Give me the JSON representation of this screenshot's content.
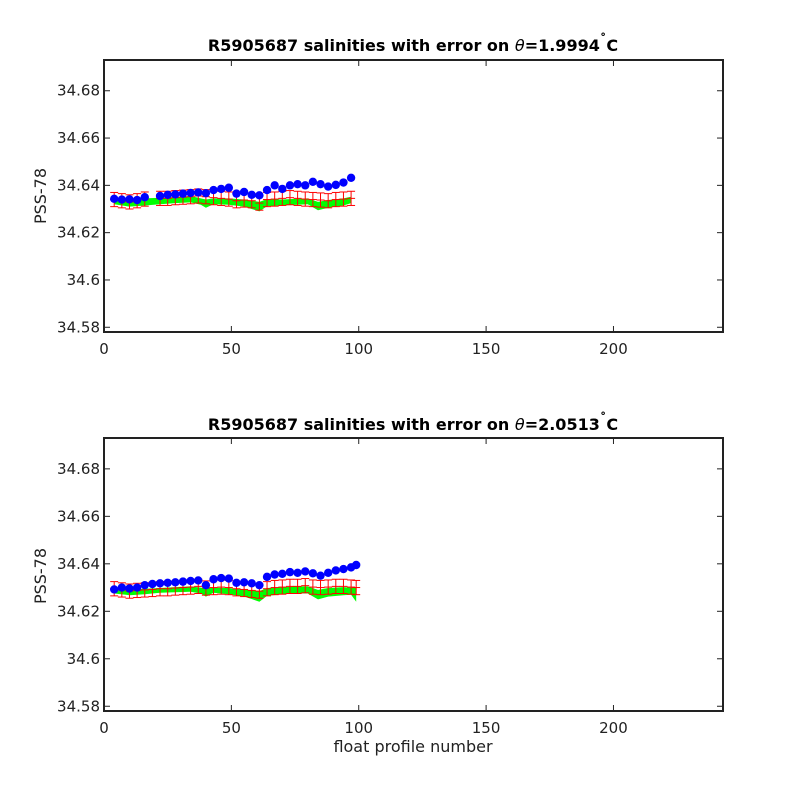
{
  "chart_data": [
    {
      "type": "scatter",
      "title": "R5905687 salinities with error on θ=1.9994˚C",
      "title_parts": {
        "prefix": "R5905687 salinities with error on ",
        "theta": "θ",
        "value": "=1.9994",
        "degree": "˚",
        "unit": "C"
      },
      "xlabel": "",
      "ylabel": "PSS-78",
      "xlim": [
        0,
        243
      ],
      "ylim": [
        34.578,
        34.693
      ],
      "xticks": [
        "0",
        "50",
        "100",
        "150",
        "200"
      ],
      "yticks": [
        "34.58",
        "34.6",
        "34.62",
        "34.64",
        "34.66",
        "34.68"
      ],
      "colors": {
        "float": "#0000ff",
        "mapped": "#ff0000",
        "band": "#00ff00"
      },
      "x_range": [
        4,
        97
      ],
      "float_x": [
        4,
        7,
        10,
        13,
        16,
        22,
        25,
        28,
        31,
        34,
        37,
        40,
        43,
        46,
        49,
        52,
        55,
        58,
        61,
        64,
        67,
        70,
        73,
        76,
        79,
        82,
        85,
        88,
        91,
        94,
        97
      ],
      "float_sal": [
        34.6343,
        34.634,
        34.6341,
        34.6338,
        34.635,
        34.6355,
        34.636,
        34.6362,
        34.6365,
        34.6368,
        34.637,
        34.6367,
        34.638,
        34.6385,
        34.639,
        34.6365,
        34.6372,
        34.636,
        34.6358,
        34.638,
        34.64,
        34.6385,
        34.64,
        34.6405,
        34.64,
        34.6415,
        34.6405,
        34.6395,
        34.6402,
        34.6412,
        34.6432
      ],
      "mapped_sal": [
        34.634,
        34.6335,
        34.633,
        34.6335,
        34.6342,
        34.6345,
        34.6345,
        34.6348,
        34.635,
        34.6352,
        34.6355,
        34.6352,
        34.6348,
        34.6345,
        34.6342,
        34.6335,
        34.6338,
        34.6335,
        34.6325,
        34.634,
        34.6342,
        34.6345,
        34.6348,
        34.6345,
        34.6342,
        34.634,
        34.6338,
        34.6335,
        34.634,
        34.6342,
        34.6345
      ],
      "mapped_err": [
        0.003,
        0.003,
        0.003,
        0.003,
        0.003,
        0.003,
        0.003,
        0.003,
        0.003,
        0.003,
        0.003,
        0.003,
        0.003,
        0.003,
        0.003,
        0.003,
        0.003,
        0.003,
        0.003,
        0.003,
        0.003,
        0.003,
        0.003,
        0.003,
        0.003,
        0.003,
        0.003,
        0.003,
        0.003,
        0.003,
        0.003
      ],
      "band_x": [
        4,
        10,
        16,
        22,
        28,
        34,
        38,
        40,
        43,
        49,
        55,
        58,
        61,
        64,
        70,
        76,
        80,
        84,
        88,
        94,
        97
      ],
      "band_upper": [
        34.6345,
        34.634,
        34.6345,
        34.6348,
        34.635,
        34.6355,
        34.6345,
        34.634,
        34.6345,
        34.6345,
        34.634,
        34.6335,
        34.633,
        34.6342,
        34.634,
        34.6343,
        34.6345,
        34.633,
        34.6338,
        34.6345,
        34.6352
      ],
      "band_lower": [
        34.632,
        34.631,
        34.6315,
        34.632,
        34.6325,
        34.6328,
        34.6318,
        34.6305,
        34.632,
        34.6318,
        34.631,
        34.63,
        34.629,
        34.6312,
        34.6315,
        34.6318,
        34.632,
        34.6295,
        34.6305,
        34.6315,
        34.6325
      ]
    },
    {
      "type": "scatter",
      "title": "R5905687 salinities with error on θ=2.0513˚C",
      "title_parts": {
        "prefix": "R5905687 salinities with error on ",
        "theta": "θ",
        "value": "=2.0513",
        "degree": "˚",
        "unit": "C"
      },
      "xlabel": "float profile number",
      "ylabel": "PSS-78",
      "xlim": [
        0,
        243
      ],
      "ylim": [
        34.578,
        34.693
      ],
      "xticks": [
        "0",
        "50",
        "100",
        "150",
        "200"
      ],
      "yticks": [
        "34.58",
        "34.6",
        "34.62",
        "34.64",
        "34.66",
        "34.68"
      ],
      "colors": {
        "float": "#0000ff",
        "mapped": "#ff0000",
        "band": "#00ff00"
      },
      "x_range": [
        4,
        99
      ],
      "float_x": [
        4,
        7,
        10,
        13,
        16,
        19,
        22,
        25,
        28,
        31,
        34,
        37,
        40,
        43,
        46,
        49,
        52,
        55,
        58,
        61,
        64,
        67,
        70,
        73,
        76,
        79,
        82,
        85,
        88,
        91,
        94,
        97,
        99
      ],
      "float_sal": [
        34.6292,
        34.63,
        34.6296,
        34.63,
        34.631,
        34.6315,
        34.6318,
        34.632,
        34.6322,
        34.6325,
        34.6328,
        34.633,
        34.631,
        34.6335,
        34.634,
        34.6338,
        34.632,
        34.6322,
        34.6318,
        34.631,
        34.6345,
        34.6355,
        34.6358,
        34.6365,
        34.6362,
        34.6368,
        34.636,
        34.635,
        34.6362,
        34.6372,
        34.6378,
        34.6385,
        34.6395
      ],
      "mapped_sal": [
        34.6295,
        34.629,
        34.6285,
        34.6288,
        34.629,
        34.6292,
        34.6295,
        34.6295,
        34.6298,
        34.63,
        34.6302,
        34.6305,
        34.6298,
        34.63,
        34.6302,
        34.63,
        34.6295,
        34.6292,
        34.6288,
        34.6285,
        34.6295,
        34.63,
        34.6302,
        34.6305,
        34.6305,
        34.6308,
        34.6302,
        34.63,
        34.6302,
        34.6305,
        34.6305,
        34.6302,
        34.63
      ],
      "mapped_err": [
        0.003,
        0.003,
        0.003,
        0.003,
        0.003,
        0.003,
        0.003,
        0.003,
        0.003,
        0.003,
        0.003,
        0.003,
        0.003,
        0.003,
        0.003,
        0.003,
        0.003,
        0.003,
        0.003,
        0.003,
        0.003,
        0.003,
        0.003,
        0.003,
        0.003,
        0.003,
        0.003,
        0.003,
        0.003,
        0.003,
        0.003,
        0.003,
        0.003
      ],
      "band_x": [
        4,
        10,
        16,
        22,
        28,
        34,
        38,
        40,
        43,
        49,
        55,
        58,
        61,
        64,
        70,
        76,
        80,
        84,
        88,
        94,
        97,
        99
      ],
      "band_upper": [
        34.6298,
        34.6292,
        34.6295,
        34.6298,
        34.6302,
        34.6305,
        34.63,
        34.6295,
        34.63,
        34.6298,
        34.6292,
        34.6288,
        34.6285,
        34.6298,
        34.6302,
        34.6305,
        34.6305,
        34.629,
        34.6298,
        34.6302,
        34.63,
        34.63
      ],
      "band_lower": [
        34.6275,
        34.6268,
        34.6272,
        34.6278,
        34.628,
        34.6282,
        34.6275,
        34.6262,
        34.6278,
        34.6272,
        34.6262,
        34.6252,
        34.624,
        34.6265,
        34.6272,
        34.6275,
        34.6275,
        34.625,
        34.6262,
        34.6268,
        34.627,
        34.624
      ]
    }
  ]
}
